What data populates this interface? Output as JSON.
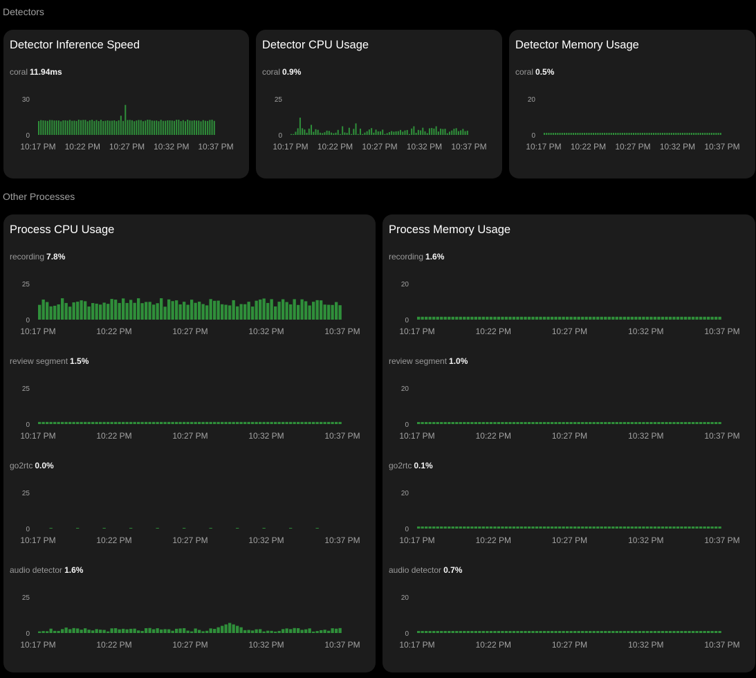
{
  "sections": {
    "detectors": "Detectors",
    "other_processes": "Other Processes"
  },
  "colors": {
    "bar": "#2f8f3a",
    "background": "#000000",
    "card": "#1c1c1c"
  },
  "cards": {
    "det_speed": {
      "title": "Detector Inference Speed",
      "metrics": [
        {
          "name": "coral",
          "value": "11.94ms",
          "chart_data": {
            "type": "bar",
            "ylim": [
              0,
              30
            ],
            "yticks": [
              "30",
              "0"
            ],
            "xticks": [
              "10:17 PM",
              "10:22 PM",
              "10:27 PM",
              "10:32 PM",
              "10:37 PM"
            ],
            "pattern": "speed"
          }
        }
      ]
    },
    "det_cpu": {
      "title": "Detector CPU Usage",
      "metrics": [
        {
          "name": "coral",
          "value": "0.9%",
          "chart_data": {
            "type": "bar",
            "ylim": [
              0,
              25
            ],
            "yticks": [
              "25",
              "0"
            ],
            "xticks": [
              "10:17 PM",
              "10:22 PM",
              "10:27 PM",
              "10:32 PM",
              "10:37 PM"
            ],
            "pattern": "detcpu"
          }
        }
      ]
    },
    "det_mem": {
      "title": "Detector Memory Usage",
      "metrics": [
        {
          "name": "coral",
          "value": "0.5%",
          "chart_data": {
            "type": "bar",
            "ylim": [
              0,
              20
            ],
            "yticks": [
              "20",
              "0"
            ],
            "xticks": [
              "10:17 PM",
              "10:22 PM",
              "10:27 PM",
              "10:32 PM",
              "10:37 PM"
            ],
            "pattern": "flat",
            "level": 0.5
          }
        }
      ]
    },
    "proc_cpu": {
      "title": "Process CPU Usage",
      "metrics": [
        {
          "name": "recording",
          "value": "7.8%",
          "chart_data": {
            "type": "bar",
            "ylim": [
              0,
              25
            ],
            "yticks": [
              "25",
              "0"
            ],
            "xticks": [
              "10:17 PM",
              "10:22 PM",
              "10:27 PM",
              "10:32 PM",
              "10:37 PM"
            ],
            "pattern": "recording"
          }
        },
        {
          "name": "review segment",
          "value": "1.5%",
          "chart_data": {
            "type": "bar",
            "ylim": [
              0,
              25
            ],
            "yticks": [
              "25",
              "0"
            ],
            "xticks": [
              "10:17 PM",
              "10:22 PM",
              "10:27 PM",
              "10:32 PM",
              "10:37 PM"
            ],
            "pattern": "flat",
            "level": 1.5
          }
        },
        {
          "name": "go2rtc",
          "value": "0.0%",
          "chart_data": {
            "type": "bar",
            "ylim": [
              0,
              25
            ],
            "yticks": [
              "25",
              "0"
            ],
            "xticks": [
              "10:17 PM",
              "10:22 PM",
              "10:27 PM",
              "10:32 PM",
              "10:37 PM"
            ],
            "pattern": "sparse"
          }
        },
        {
          "name": "audio detector",
          "value": "1.6%",
          "chart_data": {
            "type": "bar",
            "ylim": [
              0,
              25
            ],
            "yticks": [
              "25",
              "0"
            ],
            "xticks": [
              "10:17 PM",
              "10:22 PM",
              "10:27 PM",
              "10:32 PM",
              "10:37 PM"
            ],
            "pattern": "audio"
          }
        }
      ]
    },
    "proc_mem": {
      "title": "Process Memory Usage",
      "metrics": [
        {
          "name": "recording",
          "value": "1.6%",
          "chart_data": {
            "type": "bar",
            "ylim": [
              0,
              20
            ],
            "yticks": [
              "20",
              "0"
            ],
            "xticks": [
              "10:17 PM",
              "10:22 PM",
              "10:27 PM",
              "10:32 PM",
              "10:37 PM"
            ],
            "pattern": "flat",
            "level": 1.6
          }
        },
        {
          "name": "review segment",
          "value": "1.0%",
          "chart_data": {
            "type": "bar",
            "ylim": [
              0,
              20
            ],
            "yticks": [
              "20",
              "0"
            ],
            "xticks": [
              "10:17 PM",
              "10:22 PM",
              "10:27 PM",
              "10:32 PM",
              "10:37 PM"
            ],
            "pattern": "flat",
            "level": 1.0
          }
        },
        {
          "name": "go2rtc",
          "value": "0.1%",
          "chart_data": {
            "type": "bar",
            "ylim": [
              0,
              20
            ],
            "yticks": [
              "20",
              "0"
            ],
            "xticks": [
              "10:17 PM",
              "10:22 PM",
              "10:27 PM",
              "10:32 PM",
              "10:37 PM"
            ],
            "pattern": "flat",
            "level": 0.1
          }
        },
        {
          "name": "audio detector",
          "value": "0.7%",
          "chart_data": {
            "type": "bar",
            "ylim": [
              0,
              20
            ],
            "yticks": [
              "20",
              "0"
            ],
            "xticks": [
              "10:17 PM",
              "10:22 PM",
              "10:27 PM",
              "10:32 PM",
              "10:37 PM"
            ],
            "pattern": "flat",
            "level": 0.7
          }
        }
      ]
    }
  }
}
